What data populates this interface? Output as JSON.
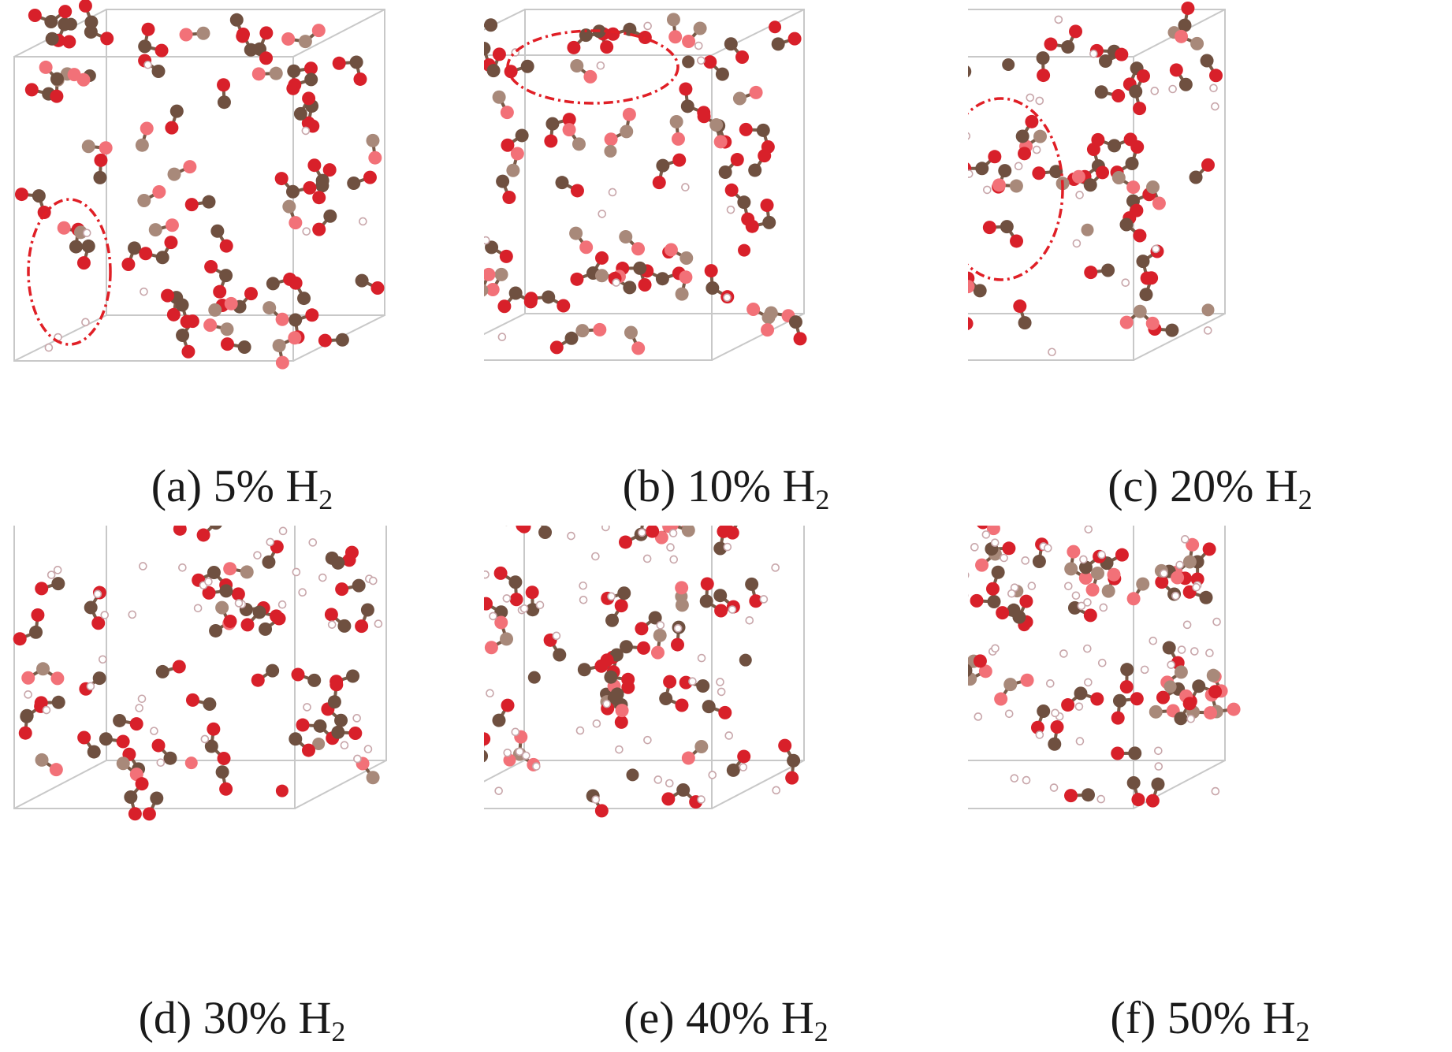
{
  "figure": {
    "panels": [
      {
        "id": "a",
        "label": "(a)",
        "percent": "5%",
        "species": "H",
        "subscript": "2",
        "h_atoms": 9,
        "highlight": "ellipse-left"
      },
      {
        "id": "b",
        "label": "(b)",
        "percent": "10%",
        "species": "H",
        "subscript": "2",
        "h_atoms": 18,
        "highlight": "ellipse-top"
      },
      {
        "id": "c",
        "label": "(c)",
        "percent": "20%",
        "species": "H",
        "subscript": "2",
        "h_atoms": 30,
        "highlight": "ellipse-center"
      },
      {
        "id": "d",
        "label": "(d)",
        "percent": "30%",
        "species": "H",
        "subscript": "2",
        "h_atoms": 48,
        "highlight": "none"
      },
      {
        "id": "e",
        "label": "(e)",
        "percent": "40%",
        "species": "H",
        "subscript": "2",
        "h_atoms": 65,
        "highlight": "none"
      },
      {
        "id": "f",
        "label": "(f)",
        "percent": "50%",
        "species": "H",
        "subscript": "2",
        "h_atoms": 85,
        "highlight": "none"
      }
    ]
  },
  "colors": {
    "carbon": "#6f5040",
    "carbon_highlight": "#a8897a",
    "oxygen": "#d8202a",
    "oxygen_highlight": "#f27178",
    "hydrogen_stroke": "#c8a6aa",
    "bond": "#7a5a48",
    "box_edge": "#c8c8c8",
    "highlight_ellipse": "#e01f26"
  }
}
